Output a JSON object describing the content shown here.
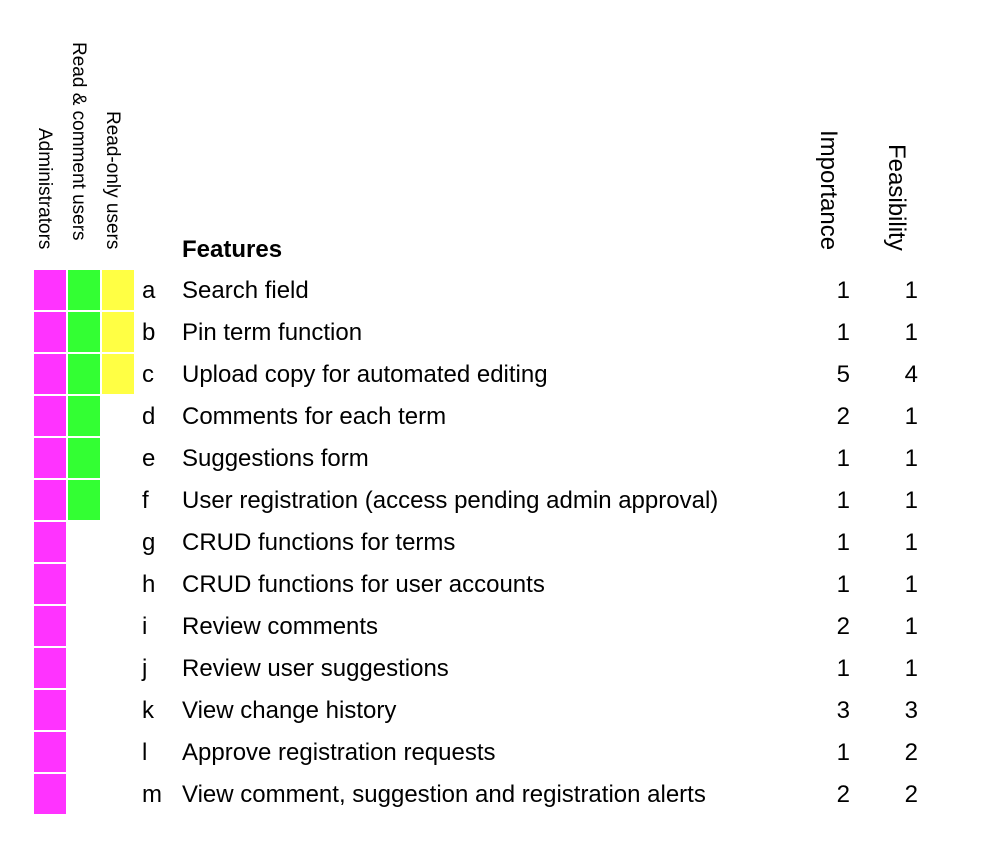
{
  "headers": {
    "administrators": "Administrators",
    "read_comment": "Read & comment users",
    "read_only": "Read-only users",
    "features": "Features",
    "importance": "Importance",
    "feasibility": "Feasibility"
  },
  "colors": {
    "administrators": "#ff33ff",
    "read_comment": "#33ff33",
    "read_only": "#ffff44"
  },
  "rows": [
    {
      "letter": "a",
      "feature": "Search field",
      "importance": "1",
      "feasibility": "1",
      "admin": true,
      "read_comment": true,
      "read_only": true
    },
    {
      "letter": "b",
      "feature": "Pin term function",
      "importance": "1",
      "feasibility": "1",
      "admin": true,
      "read_comment": true,
      "read_only": true
    },
    {
      "letter": "c",
      "feature": "Upload copy for automated editing",
      "importance": "5",
      "feasibility": "4",
      "admin": true,
      "read_comment": true,
      "read_only": true
    },
    {
      "letter": "d",
      "feature": "Comments for each term",
      "importance": "2",
      "feasibility": "1",
      "admin": true,
      "read_comment": true,
      "read_only": false
    },
    {
      "letter": "e",
      "feature": "Suggestions form",
      "importance": "1",
      "feasibility": "1",
      "admin": true,
      "read_comment": true,
      "read_only": false
    },
    {
      "letter": "f",
      "feature": "User registration (access pending admin approval)",
      "importance": "1",
      "feasibility": "1",
      "admin": true,
      "read_comment": true,
      "read_only": false
    },
    {
      "letter": "g",
      "feature": "CRUD functions for terms",
      "importance": "1",
      "feasibility": "1",
      "admin": true,
      "read_comment": false,
      "read_only": false
    },
    {
      "letter": "h",
      "feature": "CRUD functions for user accounts",
      "importance": "1",
      "feasibility": "1",
      "admin": true,
      "read_comment": false,
      "read_only": false
    },
    {
      "letter": "i",
      "feature": "Review comments",
      "importance": "2",
      "feasibility": "1",
      "admin": true,
      "read_comment": false,
      "read_only": false
    },
    {
      "letter": "j",
      "feature": "Review user suggestions",
      "importance": "1",
      "feasibility": "1",
      "admin": true,
      "read_comment": false,
      "read_only": false
    },
    {
      "letter": "k",
      "feature": "View change history",
      "importance": "3",
      "feasibility": "3",
      "admin": true,
      "read_comment": false,
      "read_only": false
    },
    {
      "letter": "l",
      "feature": "Approve registration requests",
      "importance": "1",
      "feasibility": "2",
      "admin": true,
      "read_comment": false,
      "read_only": false
    },
    {
      "letter": "m",
      "feature": "View comment, suggestion and registration alerts",
      "importance": "2",
      "feasibility": "2",
      "admin": true,
      "read_comment": false,
      "read_only": false
    }
  ]
}
